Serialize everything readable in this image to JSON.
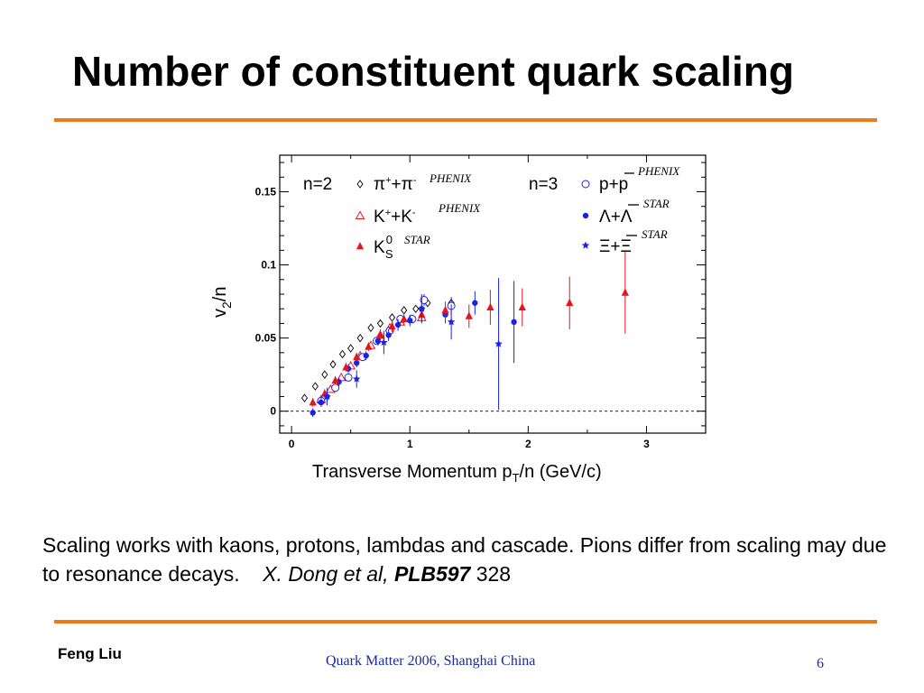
{
  "slide": {
    "title": "Number of constituent quark scaling",
    "caption_text": "Scaling works with kaons, protons, lambdas and cascade. Pions differ from scaling may due to resonance decays.",
    "caption_cite": "X. Dong  et al,",
    "caption_journal": "PLB597",
    "caption_page": "328",
    "footer_author": "Feng Liu",
    "footer_venue": "Quark Matter 2006,  Shanghai  China",
    "page_number": "6"
  },
  "colors": {
    "rule": "#f07a1a",
    "red": "#e8141c",
    "blue": "#1a22e6",
    "footer": "#1a2b9c"
  },
  "chart_data": {
    "type": "scatter",
    "xlabel": "Transverse Momentum p",
    "xlabel_sub": "T",
    "xlabel_tail": "/n (GeV/c)",
    "ylabel": "v",
    "ylabel_sub": "2",
    "ylabel_tail": "/n",
    "xlim": [
      -0.1,
      3.5
    ],
    "ylim": [
      -0.015,
      0.175
    ],
    "xticks": [
      0,
      1,
      2,
      3
    ],
    "xtick_labels": [
      "0",
      "1",
      "2",
      "3"
    ],
    "yticks": [
      0,
      0.05,
      0.1,
      0.15
    ],
    "ytick_labels": [
      "0",
      "0.05",
      "0.1",
      "0.15"
    ],
    "reference_line_y": 0,
    "legend_groups": [
      "n=2",
      "n=3"
    ],
    "series": [
      {
        "name": "π⁺+π⁻",
        "legend_main": "π",
        "legend_sup1": "+",
        "legend_mid": "+π",
        "legend_sup2": "-",
        "source": "PHENIX",
        "group": "n=2",
        "marker": "diamond-open",
        "color": "#000000",
        "points": [
          [
            0.11,
            0.009,
            0.001
          ],
          [
            0.2,
            0.017,
            0.001
          ],
          [
            0.28,
            0.025,
            0.001
          ],
          [
            0.35,
            0.032,
            0.001
          ],
          [
            0.43,
            0.039,
            0.001
          ],
          [
            0.5,
            0.043,
            0.001
          ],
          [
            0.58,
            0.05,
            0.001
          ],
          [
            0.67,
            0.057,
            0.001
          ],
          [
            0.75,
            0.06,
            0.001
          ],
          [
            0.85,
            0.064,
            0.001
          ],
          [
            0.95,
            0.069,
            0.001
          ],
          [
            1.05,
            0.07,
            0.002
          ],
          [
            1.15,
            0.074,
            0.002
          ],
          [
            1.35,
            0.074,
            0.003
          ]
        ]
      },
      {
        "name": "K⁺+K⁻",
        "legend_main": "K",
        "legend_sup1": "+",
        "legend_mid": "+K",
        "legend_sup2": "-",
        "source": "PHENIX",
        "group": "n=2",
        "marker": "triangle-open",
        "color": "#e8141c",
        "points": [
          [
            0.25,
            0.008,
            0.001
          ],
          [
            0.33,
            0.015,
            0.001
          ],
          [
            0.42,
            0.023,
            0.001
          ],
          [
            0.5,
            0.031,
            0.001
          ],
          [
            0.58,
            0.038,
            0.001
          ],
          [
            0.67,
            0.045,
            0.001
          ],
          [
            0.75,
            0.052,
            0.001
          ],
          [
            0.83,
            0.057,
            0.001
          ],
          [
            0.92,
            0.061,
            0.002
          ],
          [
            1.1,
            0.064,
            0.003
          ]
        ]
      },
      {
        "name": "K⁰S",
        "legend_main": "K",
        "legend_sup1": "0",
        "legend_sub": "S",
        "source": "STAR",
        "group": "n=2",
        "marker": "triangle-filled",
        "color": "#e8141c",
        "points": [
          [
            0.18,
            0.006,
            0.003
          ],
          [
            0.28,
            0.012,
            0.003
          ],
          [
            0.37,
            0.021,
            0.003
          ],
          [
            0.46,
            0.03,
            0.003
          ],
          [
            0.55,
            0.037,
            0.003
          ],
          [
            0.65,
            0.044,
            0.003
          ],
          [
            0.75,
            0.052,
            0.004
          ],
          [
            0.85,
            0.058,
            0.004
          ],
          [
            0.95,
            0.063,
            0.004
          ],
          [
            1.1,
            0.066,
            0.005
          ],
          [
            1.3,
            0.069,
            0.006
          ],
          [
            1.5,
            0.065,
            0.008
          ],
          [
            1.68,
            0.071,
            0.012
          ],
          [
            1.95,
            0.071,
            0.013
          ],
          [
            2.35,
            0.074,
            0.018
          ],
          [
            2.82,
            0.081,
            0.028
          ]
        ]
      },
      {
        "name": "p+p̄",
        "legend_main": "p+p",
        "source": "PHENIX",
        "group": "n=3",
        "marker": "circle-open",
        "color": "#1a22e6",
        "points": [
          [
            0.25,
            0.007,
            0.001
          ],
          [
            0.37,
            0.016,
            0.001
          ],
          [
            0.48,
            0.023,
            0.001
          ],
          [
            0.6,
            0.037,
            0.001
          ],
          [
            0.72,
            0.048,
            0.002
          ],
          [
            0.83,
            0.055,
            0.002
          ],
          [
            0.92,
            0.063,
            0.002
          ],
          [
            1.02,
            0.063,
            0.003
          ],
          [
            1.12,
            0.076,
            0.004
          ],
          [
            1.35,
            0.072,
            0.006
          ]
        ]
      },
      {
        "name": "Λ+Λ̄",
        "legend_main": "Λ+Λ",
        "source": "STAR",
        "group": "n=3",
        "marker": "circle-filled",
        "color": "#1a22e6",
        "points": [
          [
            0.18,
            -0.001,
            0.003
          ],
          [
            0.25,
            0.006,
            0.003
          ],
          [
            0.3,
            0.01,
            0.003
          ],
          [
            0.4,
            0.02,
            0.003
          ],
          [
            0.48,
            0.029,
            0.003
          ],
          [
            0.55,
            0.033,
            0.003
          ],
          [
            0.63,
            0.038,
            0.003
          ],
          [
            0.73,
            0.048,
            0.003
          ],
          [
            0.82,
            0.052,
            0.004
          ],
          [
            0.9,
            0.059,
            0.004
          ],
          [
            1.0,
            0.062,
            0.004
          ],
          [
            1.1,
            0.07,
            0.005
          ],
          [
            1.3,
            0.066,
            0.006
          ],
          [
            1.55,
            0.074,
            0.008
          ],
          [
            1.88,
            0.061,
            0.028
          ]
        ]
      },
      {
        "name": "Ξ+Ξ̄",
        "legend_main": "Ξ+Ξ",
        "source": "STAR",
        "group": "n=3",
        "marker": "star-filled",
        "color": "#1a22e6",
        "points": [
          [
            0.3,
            0.01,
            0.006
          ],
          [
            0.55,
            0.022,
            0.006
          ],
          [
            0.78,
            0.047,
            0.008
          ],
          [
            1.1,
            0.07,
            0.01
          ],
          [
            1.35,
            0.061,
            0.012
          ],
          [
            1.75,
            0.046,
            0.045
          ]
        ]
      }
    ]
  }
}
